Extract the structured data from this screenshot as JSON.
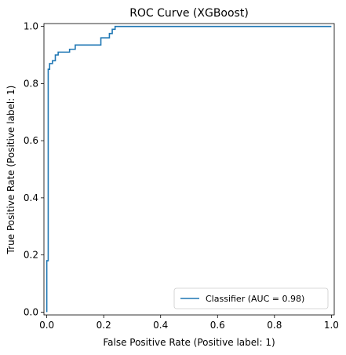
{
  "chart_data": {
    "type": "line",
    "title": "ROC Curve (XGBoost)",
    "xlabel": "False Positive Rate (Positive label: 1)",
    "ylabel": "True Positive Rate (Positive label: 1)",
    "xlim": [
      -0.01,
      1.01
    ],
    "ylim": [
      -0.01,
      1.01
    ],
    "xticks": [
      "0.0",
      "0.2",
      "0.4",
      "0.6",
      "0.8",
      "1.0"
    ],
    "yticks": [
      "0.0",
      "0.2",
      "0.4",
      "0.6",
      "0.8",
      "1.0"
    ],
    "grid": false,
    "legend_position": "lower-right",
    "series": [
      {
        "name": "Classifier (AUC = 0.98)",
        "color": "#1f77b4",
        "x": [
          0,
          0,
          0.005,
          0.005,
          0.01,
          0.01,
          0.02,
          0.02,
          0.03,
          0.03,
          0.04,
          0.04,
          0.06,
          0.06,
          0.08,
          0.08,
          0.09,
          0.09,
          0.1,
          0.1,
          0.19,
          0.19,
          0.22,
          0.22,
          0.23,
          0.23,
          0.24,
          0.24,
          1.0
        ],
        "y": [
          0,
          0.18,
          0.18,
          0.85,
          0.85,
          0.87,
          0.87,
          0.88,
          0.88,
          0.9,
          0.9,
          0.91,
          0.91,
          0.91,
          0.91,
          0.92,
          0.92,
          0.92,
          0.92,
          0.935,
          0.935,
          0.96,
          0.96,
          0.975,
          0.975,
          0.99,
          0.99,
          1.0,
          1.0
        ]
      }
    ]
  }
}
